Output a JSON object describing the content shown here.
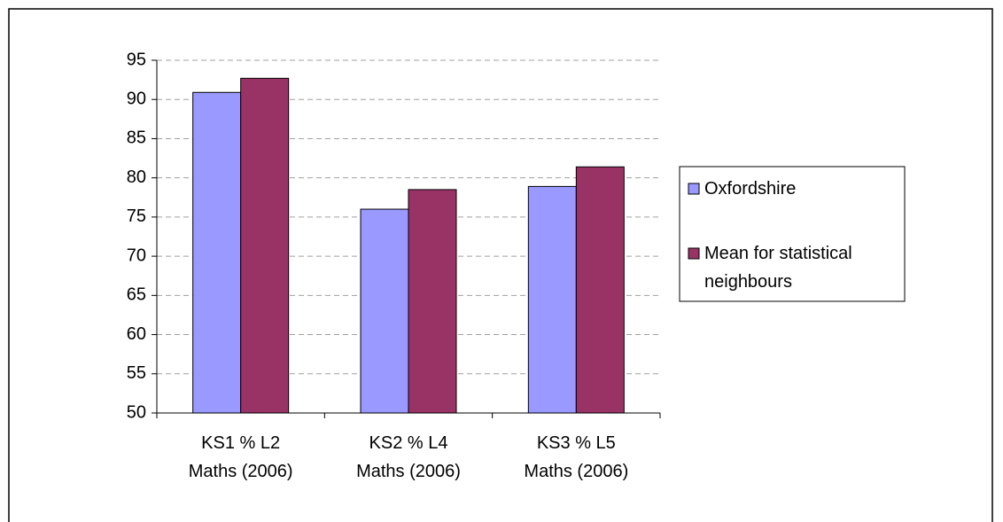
{
  "chart_data": {
    "type": "bar",
    "categories": [
      "KS1 % L2 Maths (2006)",
      "KS2 % L4 Maths (2006)",
      "KS3 % L5 Maths (2006)"
    ],
    "series": [
      {
        "name": "Oxfordshire",
        "color": "#9999ff",
        "values": [
          90.9,
          76.0,
          78.9
        ]
      },
      {
        "name": "Mean for statistical neighbours",
        "color": "#993366",
        "values": [
          92.7,
          78.5,
          81.4
        ]
      }
    ],
    "ylim": [
      50,
      95
    ],
    "yticks": [
      50,
      55,
      60,
      65,
      70,
      75,
      80,
      85,
      90,
      95
    ],
    "grid": true,
    "legend": "right"
  }
}
